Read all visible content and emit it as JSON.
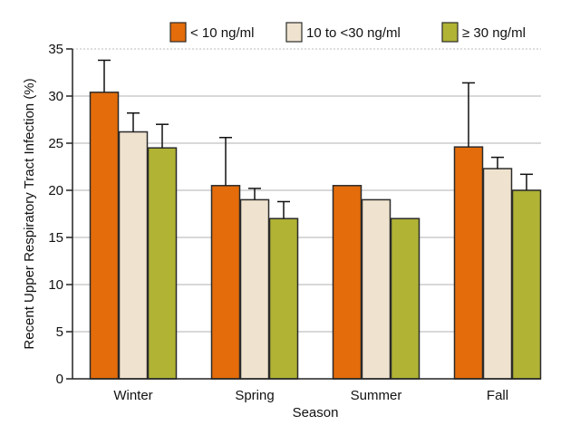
{
  "chart_data": {
    "type": "bar",
    "title": "",
    "xlabel": "Season",
    "ylabel": "Recent Upper Respiratory Tract Infection (%)",
    "ylim": [
      0,
      35
    ],
    "yticks": [
      0,
      5,
      10,
      15,
      20,
      25,
      30,
      35
    ],
    "grid": true,
    "legend_position": "top",
    "categories": [
      "Winter",
      "Spring",
      "Summer",
      "Fall"
    ],
    "series": [
      {
        "name": "< 10 ng/ml",
        "color": "#e46c0a",
        "values": [
          30.4,
          20.5,
          20.5,
          24.6
        ],
        "error_upper": [
          33.8,
          25.6,
          null,
          31.4
        ]
      },
      {
        "name": "10 to <30 ng/ml",
        "color": "#efe3cf",
        "values": [
          26.2,
          19.0,
          19.0,
          22.3
        ],
        "error_upper": [
          28.2,
          20.2,
          null,
          23.5
        ]
      },
      {
        "name": "≥ 30 ng/ml",
        "color": "#b0b334",
        "values": [
          24.5,
          17.0,
          17.0,
          20.0
        ],
        "error_upper": [
          27.0,
          18.8,
          null,
          21.7
        ]
      }
    ]
  }
}
